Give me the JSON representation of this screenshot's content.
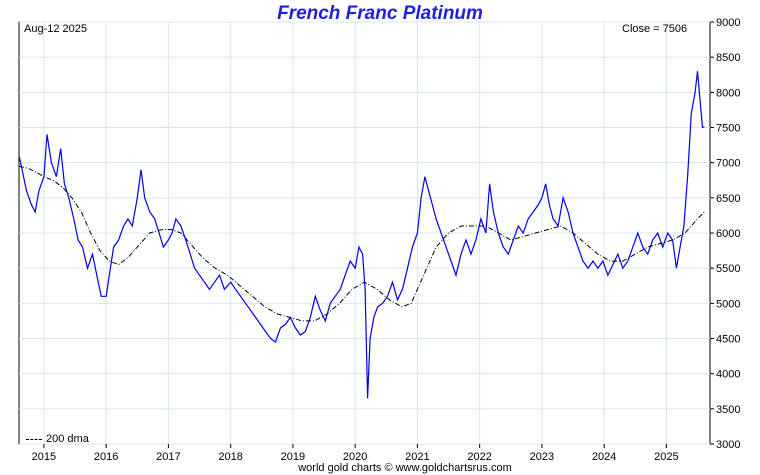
{
  "chart_data": {
    "type": "line",
    "title": "French Franc Platinum",
    "date_label": "Aug-12  2025",
    "close_label": "Close = 7506",
    "footer": "world gold charts © www.goldchartsrus.com",
    "ylim": [
      3000,
      9000
    ],
    "yticks": [
      3000,
      3500,
      4000,
      4500,
      5000,
      5500,
      6000,
      6500,
      7000,
      7500,
      8000,
      8500,
      9000
    ],
    "xlim": [
      2014.6,
      2025.7
    ],
    "xticks": [
      {
        "label": "2015",
        "x": 2015.0
      },
      {
        "label": "2016",
        "x": 2016.0
      },
      {
        "label": "2017",
        "x": 2017.0
      },
      {
        "label": "2018",
        "x": 2018.0
      },
      {
        "label": "2019",
        "x": 2019.0
      },
      {
        "label": "2020",
        "x": 2020.0
      },
      {
        "label": "2021",
        "x": 2021.0
      },
      {
        "label": "2022",
        "x": 2022.0
      },
      {
        "label": "2023",
        "x": 2023.0
      },
      {
        "label": "2024",
        "x": 2024.0
      },
      {
        "label": "2025",
        "x": 2025.0
      }
    ],
    "grid": true,
    "legend_position": "bottom-left",
    "series": [
      {
        "name": "",
        "color": "#0000ee",
        "style": "solid",
        "points": [
          [
            2014.6,
            7100
          ],
          [
            2014.65,
            6900
          ],
          [
            2014.72,
            6600
          ],
          [
            2014.8,
            6400
          ],
          [
            2014.86,
            6300
          ],
          [
            2014.92,
            6600
          ],
          [
            2015.0,
            6800
          ],
          [
            2015.05,
            7400
          ],
          [
            2015.12,
            7000
          ],
          [
            2015.2,
            6800
          ],
          [
            2015.27,
            7200
          ],
          [
            2015.33,
            6700
          ],
          [
            2015.4,
            6500
          ],
          [
            2015.48,
            6200
          ],
          [
            2015.55,
            5900
          ],
          [
            2015.62,
            5800
          ],
          [
            2015.7,
            5500
          ],
          [
            2015.78,
            5700
          ],
          [
            2015.85,
            5400
          ],
          [
            2015.92,
            5100
          ],
          [
            2016.0,
            5100
          ],
          [
            2016.05,
            5400
          ],
          [
            2016.12,
            5800
          ],
          [
            2016.2,
            5900
          ],
          [
            2016.28,
            6100
          ],
          [
            2016.35,
            6200
          ],
          [
            2016.42,
            6100
          ],
          [
            2016.5,
            6500
          ],
          [
            2016.56,
            6900
          ],
          [
            2016.62,
            6500
          ],
          [
            2016.7,
            6300
          ],
          [
            2016.78,
            6200
          ],
          [
            2016.85,
            6000
          ],
          [
            2016.92,
            5800
          ],
          [
            2017.0,
            5900
          ],
          [
            2017.06,
            6000
          ],
          [
            2017.12,
            6200
          ],
          [
            2017.2,
            6100
          ],
          [
            2017.28,
            5900
          ],
          [
            2017.35,
            5700
          ],
          [
            2017.42,
            5500
          ],
          [
            2017.5,
            5400
          ],
          [
            2017.58,
            5300
          ],
          [
            2017.66,
            5200
          ],
          [
            2017.74,
            5300
          ],
          [
            2017.82,
            5400
          ],
          [
            2017.9,
            5200
          ],
          [
            2018.0,
            5300
          ],
          [
            2018.08,
            5200
          ],
          [
            2018.16,
            5100
          ],
          [
            2018.24,
            5000
          ],
          [
            2018.32,
            4900
          ],
          [
            2018.4,
            4800
          ],
          [
            2018.48,
            4700
          ],
          [
            2018.56,
            4600
          ],
          [
            2018.64,
            4500
          ],
          [
            2018.72,
            4450
          ],
          [
            2018.8,
            4650
          ],
          [
            2018.88,
            4700
          ],
          [
            2018.96,
            4800
          ],
          [
            2019.04,
            4650
          ],
          [
            2019.12,
            4550
          ],
          [
            2019.2,
            4600
          ],
          [
            2019.28,
            4800
          ],
          [
            2019.36,
            5100
          ],
          [
            2019.44,
            4900
          ],
          [
            2019.52,
            4750
          ],
          [
            2019.6,
            5000
          ],
          [
            2019.68,
            5100
          ],
          [
            2019.76,
            5200
          ],
          [
            2019.84,
            5400
          ],
          [
            2019.92,
            5600
          ],
          [
            2020.0,
            5500
          ],
          [
            2020.06,
            5800
          ],
          [
            2020.12,
            5700
          ],
          [
            2020.16,
            5200
          ],
          [
            2020.2,
            3650
          ],
          [
            2020.24,
            4500
          ],
          [
            2020.3,
            4800
          ],
          [
            2020.36,
            4950
          ],
          [
            2020.44,
            5000
          ],
          [
            2020.52,
            5100
          ],
          [
            2020.6,
            5300
          ],
          [
            2020.68,
            5050
          ],
          [
            2020.76,
            5200
          ],
          [
            2020.84,
            5500
          ],
          [
            2020.92,
            5800
          ],
          [
            2021.0,
            6000
          ],
          [
            2021.06,
            6500
          ],
          [
            2021.12,
            6800
          ],
          [
            2021.18,
            6600
          ],
          [
            2021.24,
            6400
          ],
          [
            2021.3,
            6200
          ],
          [
            2021.38,
            6000
          ],
          [
            2021.46,
            5800
          ],
          [
            2021.54,
            5600
          ],
          [
            2021.62,
            5400
          ],
          [
            2021.7,
            5700
          ],
          [
            2021.78,
            5900
          ],
          [
            2021.86,
            5700
          ],
          [
            2021.94,
            5900
          ],
          [
            2022.02,
            6200
          ],
          [
            2022.1,
            6000
          ],
          [
            2022.16,
            6700
          ],
          [
            2022.22,
            6300
          ],
          [
            2022.3,
            6000
          ],
          [
            2022.38,
            5800
          ],
          [
            2022.46,
            5700
          ],
          [
            2022.54,
            5900
          ],
          [
            2022.62,
            6100
          ],
          [
            2022.7,
            6000
          ],
          [
            2022.78,
            6200
          ],
          [
            2022.86,
            6300
          ],
          [
            2022.94,
            6400
          ],
          [
            2023.0,
            6500
          ],
          [
            2023.06,
            6700
          ],
          [
            2023.12,
            6400
          ],
          [
            2023.18,
            6200
          ],
          [
            2023.26,
            6100
          ],
          [
            2023.34,
            6500
          ],
          [
            2023.42,
            6300
          ],
          [
            2023.5,
            6000
          ],
          [
            2023.58,
            5800
          ],
          [
            2023.66,
            5600
          ],
          [
            2023.74,
            5500
          ],
          [
            2023.82,
            5600
          ],
          [
            2023.9,
            5500
          ],
          [
            2023.98,
            5600
          ],
          [
            2024.06,
            5400
          ],
          [
            2024.14,
            5550
          ],
          [
            2024.22,
            5700
          ],
          [
            2024.3,
            5500
          ],
          [
            2024.38,
            5600
          ],
          [
            2024.46,
            5800
          ],
          [
            2024.54,
            6000
          ],
          [
            2024.62,
            5800
          ],
          [
            2024.7,
            5700
          ],
          [
            2024.78,
            5900
          ],
          [
            2024.86,
            6000
          ],
          [
            2024.94,
            5800
          ],
          [
            2025.02,
            6000
          ],
          [
            2025.1,
            5900
          ],
          [
            2025.16,
            5500
          ],
          [
            2025.22,
            5800
          ],
          [
            2025.28,
            6100
          ],
          [
            2025.34,
            6800
          ],
          [
            2025.4,
            7700
          ],
          [
            2025.46,
            8000
          ],
          [
            2025.5,
            8300
          ],
          [
            2025.54,
            7900
          ],
          [
            2025.58,
            7500
          ],
          [
            2025.61,
            7506
          ]
        ]
      },
      {
        "name": "200 dma",
        "color": "#000000",
        "style": "dashdot",
        "points": [
          [
            2014.6,
            6950
          ],
          [
            2014.75,
            6920
          ],
          [
            2014.9,
            6850
          ],
          [
            2015.0,
            6800
          ],
          [
            2015.15,
            6750
          ],
          [
            2015.3,
            6650
          ],
          [
            2015.45,
            6500
          ],
          [
            2015.6,
            6300
          ],
          [
            2015.75,
            6000
          ],
          [
            2015.9,
            5750
          ],
          [
            2016.05,
            5600
          ],
          [
            2016.2,
            5550
          ],
          [
            2016.35,
            5650
          ],
          [
            2016.5,
            5800
          ],
          [
            2016.7,
            6000
          ],
          [
            2016.9,
            6050
          ],
          [
            2017.05,
            6050
          ],
          [
            2017.2,
            6000
          ],
          [
            2017.35,
            5850
          ],
          [
            2017.55,
            5650
          ],
          [
            2017.75,
            5500
          ],
          [
            2017.95,
            5400
          ],
          [
            2018.15,
            5250
          ],
          [
            2018.35,
            5100
          ],
          [
            2018.55,
            4950
          ],
          [
            2018.75,
            4850
          ],
          [
            2018.95,
            4800
          ],
          [
            2019.15,
            4750
          ],
          [
            2019.35,
            4750
          ],
          [
            2019.55,
            4850
          ],
          [
            2019.75,
            5000
          ],
          [
            2019.95,
            5200
          ],
          [
            2020.15,
            5300
          ],
          [
            2020.35,
            5200
          ],
          [
            2020.55,
            5050
          ],
          [
            2020.75,
            4950
          ],
          [
            2020.9,
            5000
          ],
          [
            2021.0,
            5200
          ],
          [
            2021.15,
            5500
          ],
          [
            2021.3,
            5800
          ],
          [
            2021.5,
            6000
          ],
          [
            2021.7,
            6100
          ],
          [
            2021.9,
            6100
          ],
          [
            2022.1,
            6100
          ],
          [
            2022.3,
            6000
          ],
          [
            2022.5,
            5900
          ],
          [
            2022.7,
            5950
          ],
          [
            2022.9,
            6000
          ],
          [
            2023.1,
            6050
          ],
          [
            2023.3,
            6100
          ],
          [
            2023.5,
            6000
          ],
          [
            2023.7,
            5850
          ],
          [
            2023.9,
            5700
          ],
          [
            2024.1,
            5600
          ],
          [
            2024.3,
            5600
          ],
          [
            2024.5,
            5700
          ],
          [
            2024.7,
            5800
          ],
          [
            2024.9,
            5850
          ],
          [
            2025.1,
            5900
          ],
          [
            2025.3,
            6000
          ],
          [
            2025.5,
            6200
          ],
          [
            2025.61,
            6300
          ]
        ]
      }
    ]
  }
}
